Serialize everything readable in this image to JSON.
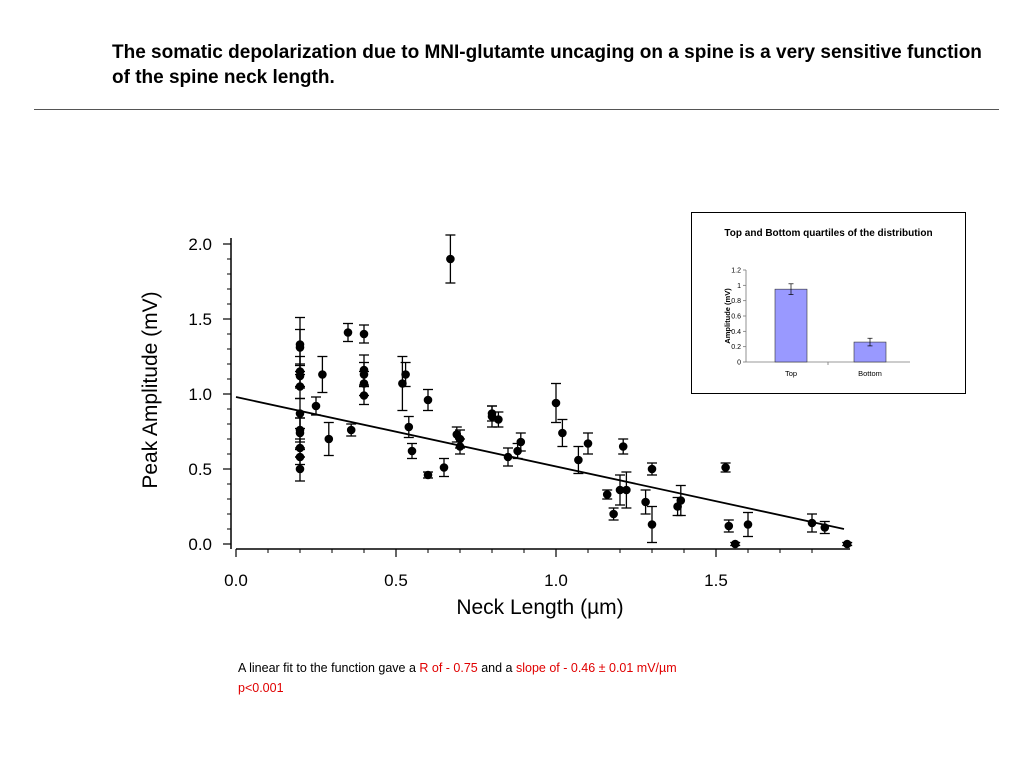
{
  "slide": {
    "title": "The somatic depolarization due to MNI-glutamte uncaging on a spine is a very sensitive function of the spine neck length.",
    "caption_intro": "A linear fit to the function gave a ",
    "caption_r": "R of - 0.75",
    "caption_and": " and a ",
    "caption_slope": "slope of - 0.46 ± 0.01 mV/µm",
    "caption_p": "p<0.001",
    "accent_red": "#e00000"
  },
  "chart_data": [
    {
      "type": "scatter",
      "xlabel": "Neck Length (µm)",
      "ylabel": "Peak Amplitude (mV)",
      "xlim": [
        0,
        1.9
      ],
      "ylim": [
        0,
        2.0
      ],
      "x_ticks": [
        "0.0",
        "0.5",
        "1.0",
        "1.5"
      ],
      "y_ticks": [
        "0.0",
        "0.5",
        "1.0",
        "1.5",
        "2.0"
      ],
      "marker_color": "#000000",
      "fit_line": {
        "x": [
          0.0,
          1.9
        ],
        "y": [
          0.98,
          0.1
        ]
      },
      "points": [
        {
          "x": 0.2,
          "y": 1.33,
          "err": 0.18
        },
        {
          "x": 0.2,
          "y": 1.31,
          "err": 0.12
        },
        {
          "x": 0.2,
          "y": 1.15,
          "err": 0.1
        },
        {
          "x": 0.2,
          "y": 1.12,
          "err": 0.08
        },
        {
          "x": 0.2,
          "y": 1.05,
          "err": 0.08
        },
        {
          "x": 0.2,
          "y": 0.87,
          "err": 0.1
        },
        {
          "x": 0.2,
          "y": 0.76,
          "err": 0.08
        },
        {
          "x": 0.2,
          "y": 0.74,
          "err": 0.1
        },
        {
          "x": 0.2,
          "y": 0.64,
          "err": 0.06
        },
        {
          "x": 0.2,
          "y": 0.58,
          "err": 0.05
        },
        {
          "x": 0.2,
          "y": 0.5,
          "err": 0.08
        },
        {
          "x": 0.25,
          "y": 0.92,
          "err": 0.06
        },
        {
          "x": 0.27,
          "y": 1.13,
          "err": 0.12
        },
        {
          "x": 0.29,
          "y": 0.7,
          "err": 0.11
        },
        {
          "x": 0.35,
          "y": 1.41,
          "err": 0.06
        },
        {
          "x": 0.36,
          "y": 0.76,
          "err": 0.04
        },
        {
          "x": 0.4,
          "y": 1.4,
          "err": 0.06
        },
        {
          "x": 0.4,
          "y": 1.16,
          "err": 0.1
        },
        {
          "x": 0.4,
          "y": 1.13,
          "err": 0.08
        },
        {
          "x": 0.4,
          "y": 1.07,
          "err": 0.08
        },
        {
          "x": 0.4,
          "y": 0.99,
          "err": 0.06
        },
        {
          "x": 0.52,
          "y": 1.07,
          "err": 0.18
        },
        {
          "x": 0.53,
          "y": 1.13,
          "err": 0.08
        },
        {
          "x": 0.54,
          "y": 0.78,
          "err": 0.07
        },
        {
          "x": 0.55,
          "y": 0.62,
          "err": 0.05
        },
        {
          "x": 0.6,
          "y": 0.96,
          "err": 0.07
        },
        {
          "x": 0.6,
          "y": 0.46,
          "err": 0.02
        },
        {
          "x": 0.65,
          "y": 0.51,
          "err": 0.06
        },
        {
          "x": 0.67,
          "y": 1.9,
          "err": 0.16
        },
        {
          "x": 0.69,
          "y": 0.73,
          "err": 0.05
        },
        {
          "x": 0.7,
          "y": 0.7,
          "err": 0.06
        },
        {
          "x": 0.7,
          "y": 0.65,
          "err": 0.05
        },
        {
          "x": 0.8,
          "y": 0.87,
          "err": 0.05
        },
        {
          "x": 0.8,
          "y": 0.85,
          "err": 0.07
        },
        {
          "x": 0.82,
          "y": 0.83,
          "err": 0.05
        },
        {
          "x": 0.85,
          "y": 0.58,
          "err": 0.06
        },
        {
          "x": 0.88,
          "y": 0.62,
          "err": 0.05
        },
        {
          "x": 0.89,
          "y": 0.68,
          "err": 0.06
        },
        {
          "x": 1.0,
          "y": 0.94,
          "err": 0.13
        },
        {
          "x": 1.02,
          "y": 0.74,
          "err": 0.09
        },
        {
          "x": 1.07,
          "y": 0.56,
          "err": 0.09
        },
        {
          "x": 1.1,
          "y": 0.67,
          "err": 0.07
        },
        {
          "x": 1.16,
          "y": 0.33,
          "err": 0.03
        },
        {
          "x": 1.18,
          "y": 0.2,
          "err": 0.04
        },
        {
          "x": 1.2,
          "y": 0.36,
          "err": 0.1
        },
        {
          "x": 1.21,
          "y": 0.65,
          "err": 0.05
        },
        {
          "x": 1.22,
          "y": 0.36,
          "err": 0.12
        },
        {
          "x": 1.28,
          "y": 0.28,
          "err": 0.08
        },
        {
          "x": 1.3,
          "y": 0.5,
          "err": 0.04
        },
        {
          "x": 1.3,
          "y": 0.13,
          "err": 0.12
        },
        {
          "x": 1.38,
          "y": 0.25,
          "err": 0.06
        },
        {
          "x": 1.39,
          "y": 0.29,
          "err": 0.1
        },
        {
          "x": 1.53,
          "y": 0.51,
          "err": 0.03
        },
        {
          "x": 1.54,
          "y": 0.12,
          "err": 0.04
        },
        {
          "x": 1.56,
          "y": 0.0,
          "err": 0.01
        },
        {
          "x": 1.6,
          "y": 0.13,
          "err": 0.08
        },
        {
          "x": 1.8,
          "y": 0.14,
          "err": 0.06
        },
        {
          "x": 1.84,
          "y": 0.11,
          "err": 0.04
        },
        {
          "x": 1.91,
          "y": 0.0,
          "err": 0.01
        }
      ]
    },
    {
      "type": "bar",
      "title": "Top and Bottom quartiles of the distribution",
      "categories": [
        "Top",
        "Bottom"
      ],
      "values": [
        0.95,
        0.26
      ],
      "errors": [
        0.07,
        0.05
      ],
      "ylabel": "Amplitude (mV)",
      "ylim": [
        0,
        1.2
      ],
      "y_ticks": [
        "0",
        "0.2",
        "0.4",
        "0.6",
        "0.8",
        "1",
        "1.2"
      ],
      "bar_color": "#9999ff"
    }
  ]
}
